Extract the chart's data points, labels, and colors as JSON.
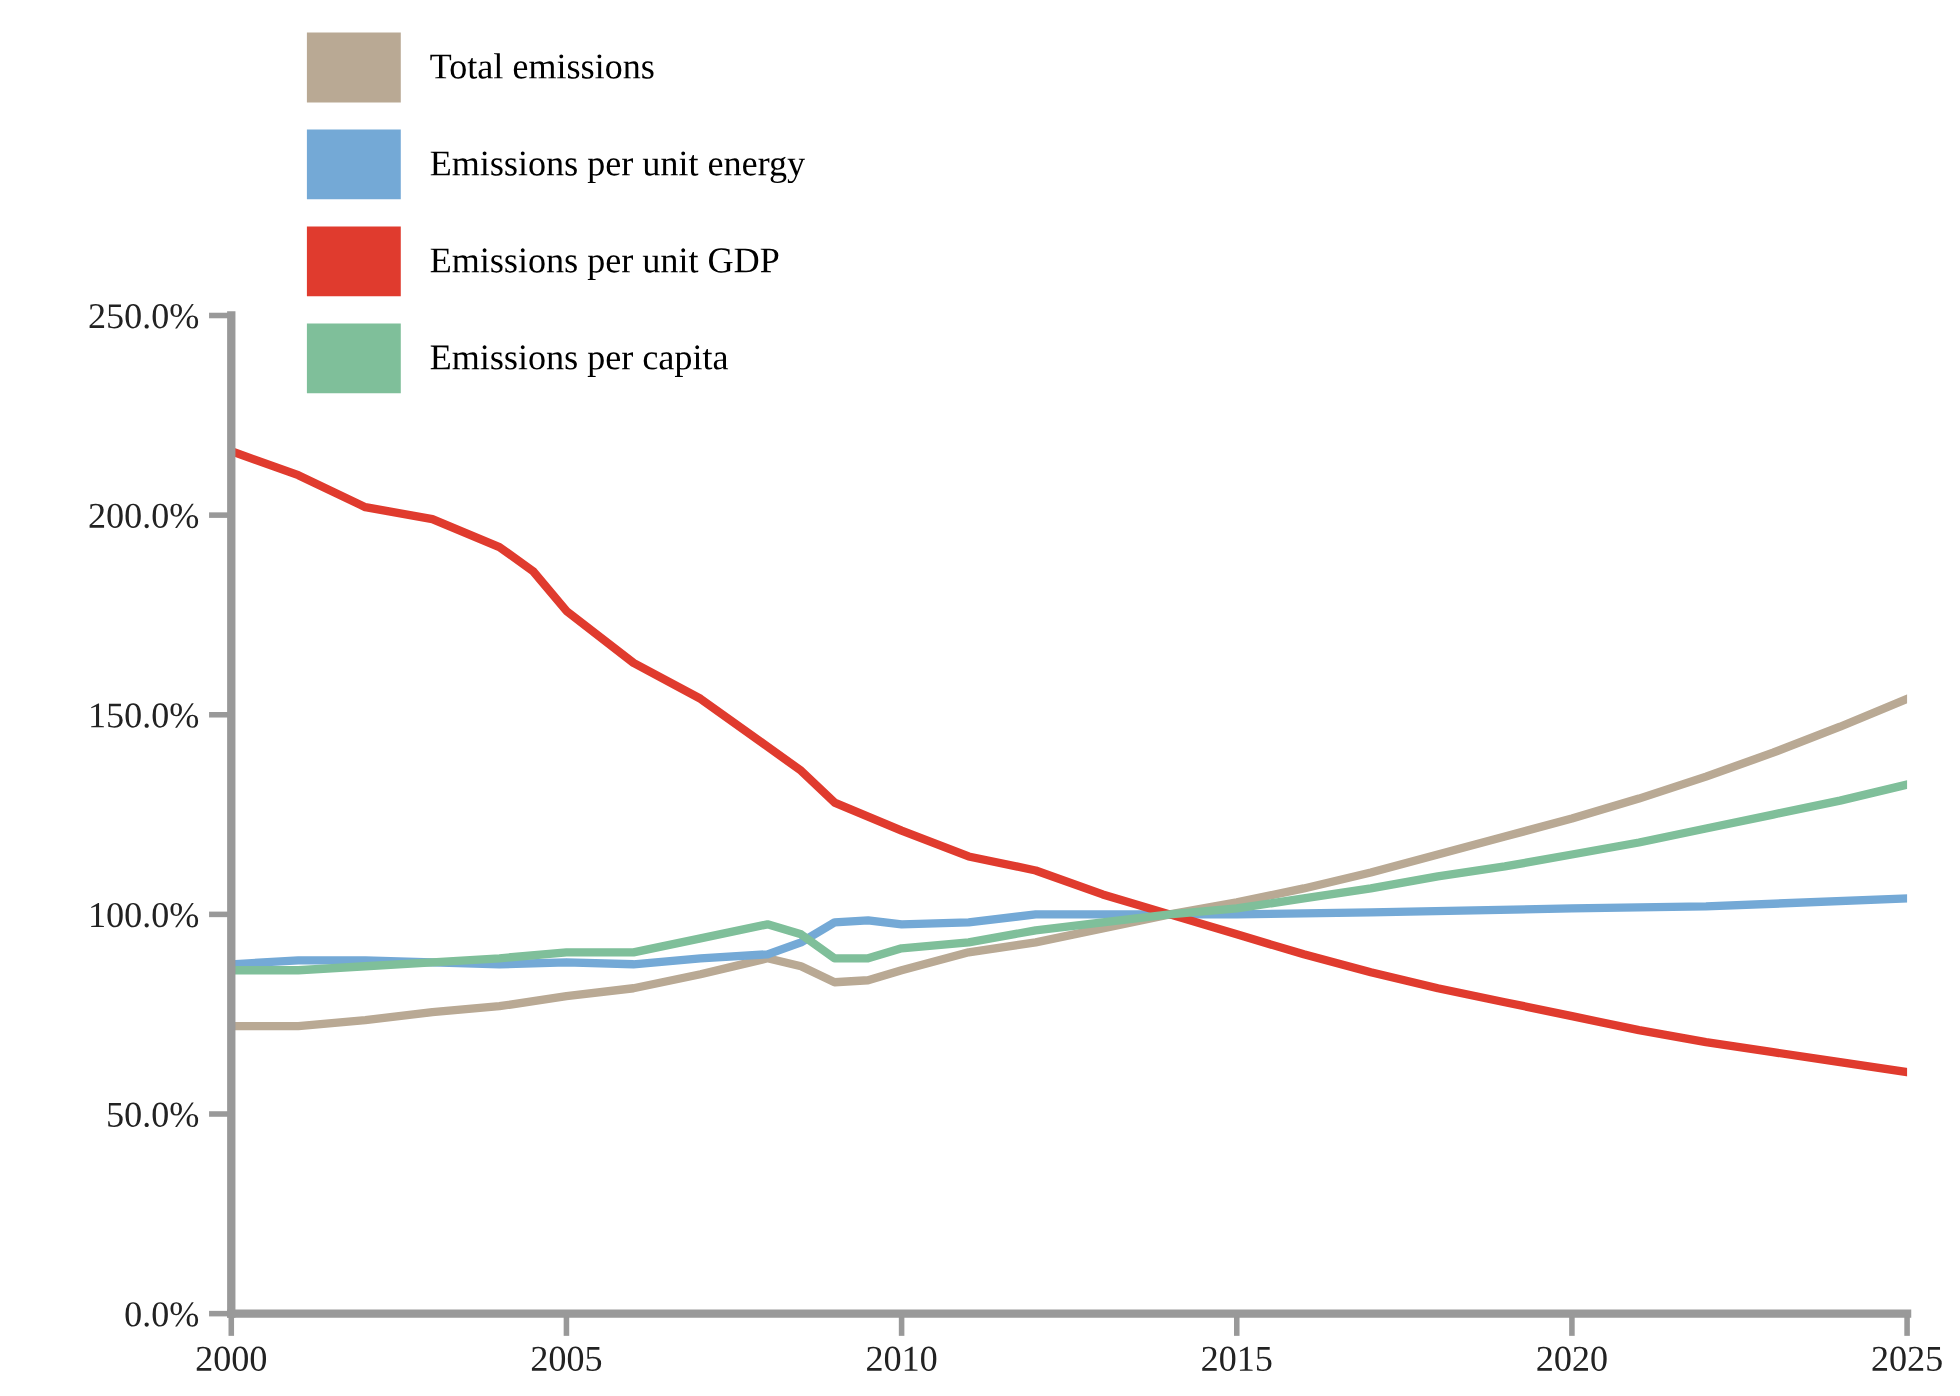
{
  "chart_data": {
    "type": "line",
    "legend": "top left",
    "grid": false,
    "marker": "none",
    "line_style": "solid",
    "xlim": [
      2000,
      2025
    ],
    "xticks": [
      2000,
      2005,
      2010,
      2015,
      2020,
      2025
    ],
    "ylim": [
      0,
      250
    ],
    "yticks": [
      {
        "value": 0,
        "label": "0.0%"
      },
      {
        "value": 50,
        "label": "50.0%"
      },
      {
        "value": 100,
        "label": "100.0%"
      },
      {
        "value": 150,
        "label": "150.0%"
      },
      {
        "value": 200,
        "label": "200.0%"
      },
      {
        "value": 250,
        "label": "250.0%"
      }
    ],
    "series": [
      {
        "name": "Total emissions",
        "color": "#b9a994",
        "x": [
          2000,
          2001,
          2002,
          2003,
          2004,
          2005,
          2006,
          2007,
          2008,
          2008.5,
          2009,
          2009.5,
          2010,
          2011,
          2012,
          2013,
          2014,
          2015,
          2016,
          2017,
          2018,
          2019,
          2020,
          2021,
          2022,
          2023,
          2024,
          2025
        ],
        "values": [
          72,
          72,
          73.5,
          75.5,
          77,
          79.5,
          81.5,
          85,
          89,
          87,
          83,
          83.5,
          86,
          90.5,
          93,
          96.5,
          100,
          103,
          106.5,
          110.5,
          115,
          119.5,
          124,
          129,
          134.5,
          140.5,
          147,
          154
        ]
      },
      {
        "name": "Emissions per unit energy",
        "color": "#74a9d6",
        "x": [
          2000,
          2001,
          2002,
          2003,
          2004,
          2005,
          2006,
          2007,
          2008,
          2008.5,
          2009,
          2009.5,
          2010,
          2011,
          2012,
          2013,
          2014,
          2015,
          2017,
          2020,
          2022,
          2025
        ],
        "values": [
          87.5,
          88.5,
          88.5,
          88,
          87.5,
          88,
          87.5,
          89,
          90,
          93,
          98,
          98.5,
          97.5,
          98,
          100,
          100,
          100,
          100,
          100.5,
          101.5,
          102,
          104
        ]
      },
      {
        "name": "Emissions per unit GDP",
        "color": "#e03b2e",
        "x": [
          2000,
          2001,
          2002,
          2003,
          2004,
          2004.5,
          2005,
          2006,
          2007,
          2008,
          2008.5,
          2009,
          2009.5,
          2010,
          2011,
          2012,
          2013,
          2014,
          2015,
          2016,
          2017,
          2018,
          2019,
          2020,
          2021,
          2022,
          2023,
          2024,
          2025
        ],
        "values": [
          216,
          210,
          202,
          199,
          192,
          186,
          176,
          163,
          154,
          142,
          136,
          128,
          124.5,
          121,
          114.5,
          111,
          105,
          100,
          95,
          90,
          85.5,
          81.5,
          78,
          74.5,
          71,
          68,
          65.5,
          63,
          60.5
        ]
      },
      {
        "name": "Emissions per capita",
        "color": "#7fbf9a",
        "x": [
          2000,
          2001,
          2002,
          2003,
          2004,
          2005,
          2006,
          2007,
          2008,
          2008.5,
          2009,
          2009.5,
          2010,
          2011,
          2012,
          2013,
          2014,
          2015,
          2016,
          2017,
          2018,
          2019,
          2020,
          2021,
          2022,
          2023,
          2024,
          2025
        ],
        "values": [
          86,
          86,
          87,
          88,
          89,
          90.5,
          90.5,
          94,
          97.5,
          95,
          89,
          89,
          91.5,
          93,
          96,
          98,
          100,
          101.5,
          104,
          106.5,
          109.5,
          112,
          115,
          118,
          121.5,
          125,
          128.5,
          132.5
        ]
      }
    ]
  }
}
